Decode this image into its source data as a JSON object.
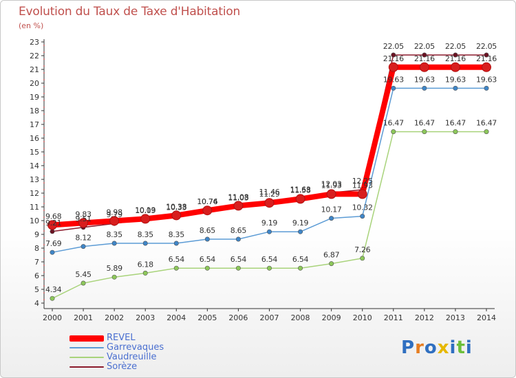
{
  "header": {
    "title": "Evolution du Taux de Taxe d'Habitation",
    "unit": "(en %)"
  },
  "logo": {
    "text": "Proxiti"
  },
  "chart_data": {
    "type": "line",
    "title": "Evolution du Taux de Taxe d'Habitation",
    "ylabel": "(en %)",
    "xlabel": "",
    "x": [
      "2000",
      "2001",
      "2002",
      "2003",
      "2004",
      "2005",
      "2006",
      "2007",
      "2008",
      "2009",
      "2010",
      "2011",
      "2012",
      "2013",
      "2014"
    ],
    "ylim": [
      4,
      23
    ],
    "yticks": [
      4,
      5,
      6,
      7,
      8,
      9,
      10,
      11,
      12,
      13,
      14,
      15,
      16,
      17,
      18,
      19,
      20,
      21,
      22,
      23
    ],
    "grid": false,
    "legend_position": "bottom-left",
    "series": [
      {
        "name": "REVEL",
        "color": "#ff0000",
        "marker_color": "#d81e1e",
        "values": [
          9.68,
          9.83,
          9.98,
          10.13,
          10.38,
          10.74,
          11.08,
          11.29,
          11.58,
          11.93,
          11.93,
          21.16,
          21.16,
          21.16,
          21.16
        ]
      },
      {
        "name": "Garrevaques",
        "color": "#5b9bd5",
        "marker_color": "#3f86c8",
        "values": [
          7.69,
          8.12,
          8.35,
          8.35,
          8.35,
          8.65,
          8.65,
          9.19,
          9.19,
          10.17,
          10.32,
          19.63,
          19.63,
          19.63,
          19.63
        ]
      },
      {
        "name": "Vaudreuille",
        "color": "#a8d37a",
        "marker_color": "#8dc85a",
        "values": [
          4.34,
          5.45,
          5.89,
          6.18,
          6.54,
          6.54,
          6.54,
          6.54,
          6.54,
          6.87,
          7.26,
          16.47,
          16.47,
          16.47,
          16.47
        ]
      },
      {
        "name": "Sorèze",
        "color": "#8b1a2b",
        "marker_color": "#6b1222",
        "values": [
          9.21,
          9.51,
          9.79,
          10.09,
          10.33,
          10.76,
          11.03,
          11.46,
          11.63,
          12.03,
          12.25,
          22.05,
          22.05,
          22.05,
          22.05
        ]
      }
    ],
    "point_labels": [
      {
        "series": "REVEL",
        "values": [
          "9.68",
          "9.83",
          "9.98",
          "10.13",
          "10.38",
          "10.74",
          "11.08",
          "11.29",
          "11.58",
          "11.93",
          "11.93",
          "21.16",
          "21.16",
          "21.16",
          "21.16"
        ]
      },
      {
        "series": "Garrevaques",
        "values": [
          "7.69",
          "8.12",
          "8.35",
          "8.35",
          "8.35",
          "8.65",
          "8.65",
          "9.19",
          "9.19",
          "10.17",
          "10.32",
          "19.63",
          "19.63",
          "19.63",
          "19.63"
        ]
      },
      {
        "series": "Vaudreuille",
        "values": [
          "4.34",
          "5.45",
          "5.89",
          "6.18",
          "6.54",
          "6.54",
          "6.54",
          "6.54",
          "6.54",
          "6.87",
          "7.26",
          "16.47",
          "16.47",
          "16.47",
          "16.47"
        ]
      },
      {
        "series": "Sorèze",
        "values": [
          "9.21",
          "9.51",
          "9.79",
          "10.09",
          "10.33",
          "10.76",
          "11.03",
          "11.46",
          "11.63",
          "12.03",
          "12.25",
          "22.05",
          "22.05",
          "22.05",
          "22.05"
        ]
      }
    ]
  }
}
